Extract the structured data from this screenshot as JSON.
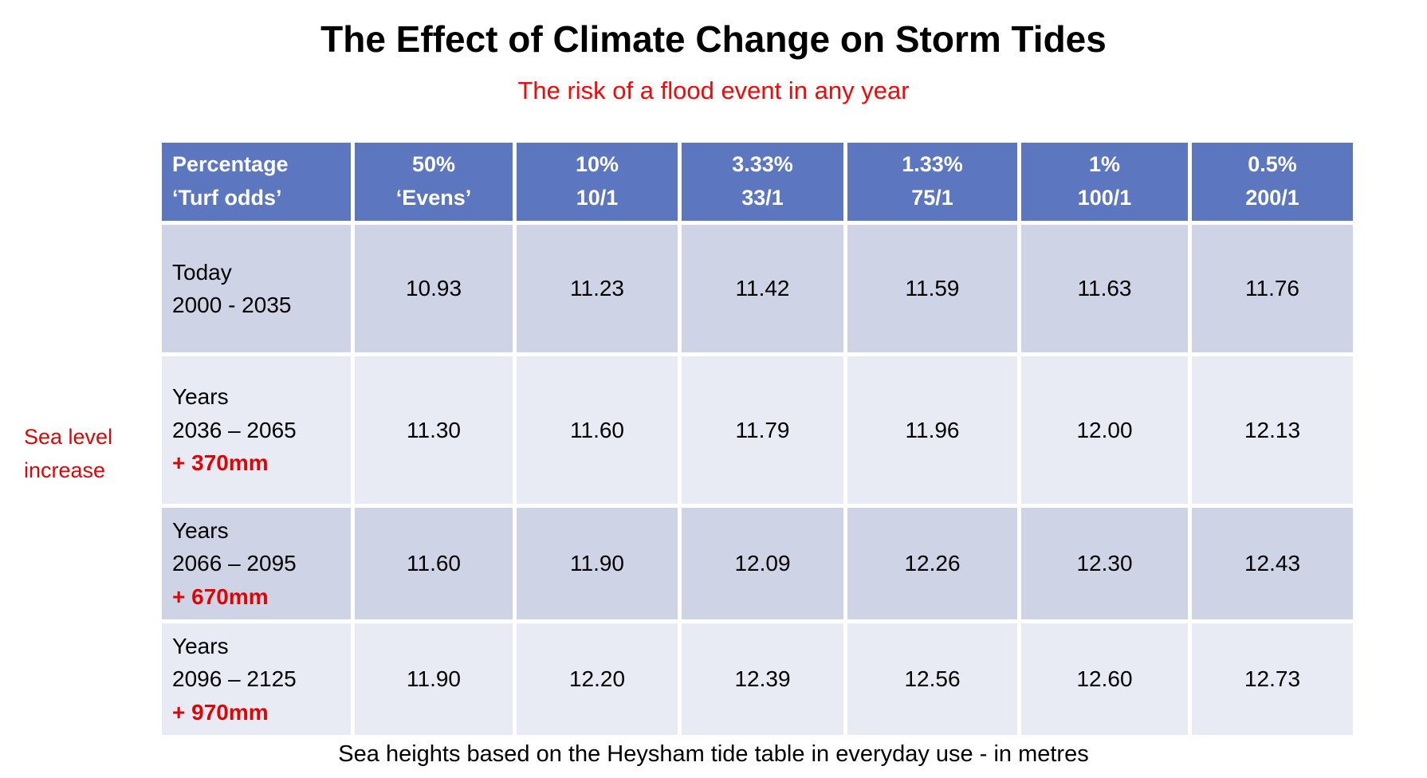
{
  "slide": {
    "title": "The Effect of Climate Change on Storm Tides",
    "subtitle": "The risk of a flood event in any year",
    "side_label_line1": "Sea level",
    "side_label_line2": "increase",
    "caption": "Sea heights based on the Heysham tide table in everyday use - in metres"
  },
  "colors": {
    "header_bg": "#5c77c0",
    "band_dark": "#cfd3e6",
    "band_light": "#e8eaf4",
    "header_text": "#ffffff",
    "accent_red": "#e00505",
    "subtitle_red": "#fa0505",
    "body_text": "#000000"
  },
  "table": {
    "columns": [
      {
        "line1": "Percentage",
        "line2": "‘Turf odds’"
      },
      {
        "line1": "50%",
        "line2": "‘Evens’"
      },
      {
        "line1": "10%",
        "line2": "10/1"
      },
      {
        "line1": "3.33%",
        "line2": "33/1"
      },
      {
        "line1": "1.33%",
        "line2": "75/1"
      },
      {
        "line1": "1%",
        "line2": "100/1"
      },
      {
        "line1": "0.5%",
        "line2": "200/1"
      }
    ],
    "rows": [
      {
        "label_lines": [
          "Today",
          "2000 - 2035"
        ],
        "values": [
          "10.93",
          "11.23",
          "11.42",
          "11.59",
          "11.63",
          "11.76"
        ]
      },
      {
        "label_lines": [
          "Years",
          "2036 – 2065"
        ],
        "increase": "+ 370mm",
        "values": [
          "11.30",
          "11.60",
          "11.79",
          "11.96",
          "12.00",
          "12.13"
        ]
      },
      {
        "label_lines": [
          "Years",
          "2066 – 2095"
        ],
        "increase": "+ 670mm",
        "values": [
          "11.60",
          "11.90",
          "12.09",
          "12.26",
          "12.30",
          "12.43"
        ]
      },
      {
        "label_lines": [
          "Years",
          "2096 – 2125"
        ],
        "increase": "+ 970mm",
        "values": [
          "11.90",
          "12.20",
          "12.39",
          "12.56",
          "12.60",
          "12.73"
        ]
      }
    ]
  },
  "chart_data": {
    "type": "table",
    "title": "The Effect of Climate Change on Storm Tides",
    "subtitle": "The risk of a flood event in any year",
    "note": "Sea heights based on the Heysham tide table in everyday use - in metres",
    "row_axis_label": "Sea level increase",
    "columns": [
      "Percentage ‘Turf odds’",
      "50% ‘Evens’",
      "10% 10/1",
      "3.33% 33/1",
      "1.33% 75/1",
      "1% 100/1",
      "0.5% 200/1"
    ],
    "rows": [
      {
        "period": "Today 2000 - 2035",
        "sea_level_increase_mm": 0,
        "heights_m": [
          10.93,
          11.23,
          11.42,
          11.59,
          11.63,
          11.76
        ]
      },
      {
        "period": "Years 2036 – 2065",
        "sea_level_increase_mm": 370,
        "heights_m": [
          11.3,
          11.6,
          11.79,
          11.96,
          12.0,
          12.13
        ]
      },
      {
        "period": "Years 2066 – 2095",
        "sea_level_increase_mm": 670,
        "heights_m": [
          11.6,
          11.9,
          12.09,
          12.26,
          12.3,
          12.43
        ]
      },
      {
        "period": "Years 2096 – 2125",
        "sea_level_increase_mm": 970,
        "heights_m": [
          11.9,
          12.2,
          12.39,
          12.56,
          12.6,
          12.73
        ]
      }
    ]
  }
}
